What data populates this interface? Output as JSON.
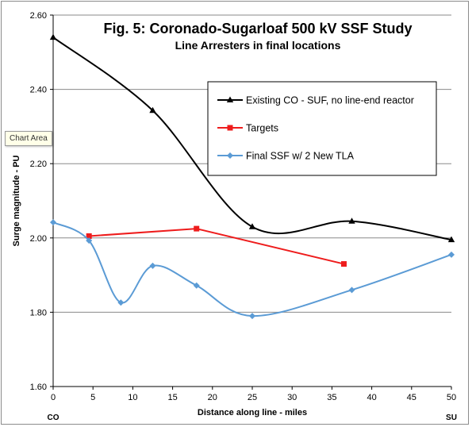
{
  "tooltip": "Chart Area",
  "chart_data": {
    "type": "line",
    "title": "Fig. 5: Coronado-Sugarloaf 500 kV SSF Study",
    "subtitle": "Line Arresters in final locations",
    "xlabel": "Distance along line - miles",
    "ylabel": "Surge magnitude - PU",
    "xlim": [
      0,
      50
    ],
    "ylim": [
      1.6,
      2.6
    ],
    "x_ticks": [
      "0",
      "5",
      "10",
      "15",
      "20",
      "25",
      "30",
      "35",
      "40",
      "45",
      "50"
    ],
    "y_ticks": [
      "1.60",
      "1.80",
      "2.00",
      "2.20",
      "2.40",
      "2.60"
    ],
    "x_end_labels": {
      "left": "CO",
      "right": "SU"
    },
    "grid": "horizontal",
    "legend_position": "top-right",
    "series": [
      {
        "name": "Existing CO - SUF, no line-end reactor",
        "color": "#000000",
        "marker": "triangle",
        "smooth": true,
        "x": [
          0,
          12.5,
          25,
          37.5,
          50
        ],
        "y": [
          2.54,
          2.343,
          2.03,
          2.045,
          1.995
        ]
      },
      {
        "name": "Targets",
        "color": "#ee1c1c",
        "marker": "square",
        "smooth": false,
        "x": [
          4.5,
          18,
          36.5
        ],
        "y": [
          2.005,
          2.025,
          1.93
        ]
      },
      {
        "name": "Final  SSF w/ 2 New TLA",
        "color": "#5b9bd5",
        "marker": "diamond",
        "smooth": true,
        "x": [
          0,
          4.5,
          8.5,
          12.5,
          18,
          25,
          37.5,
          50
        ],
        "y": [
          2.042,
          1.993,
          1.826,
          1.925,
          1.872,
          1.79,
          1.86,
          1.955
        ]
      }
    ]
  }
}
